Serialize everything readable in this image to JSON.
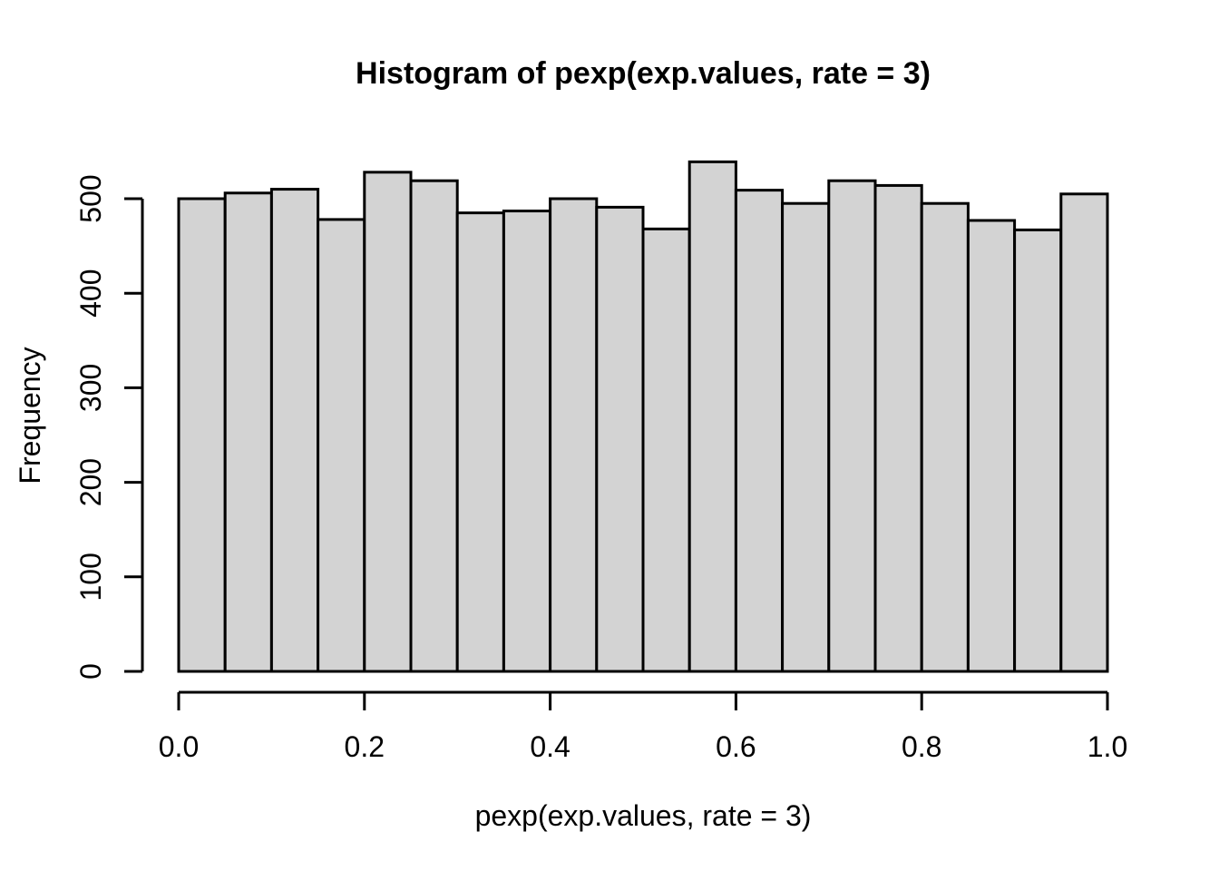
{
  "figure": {
    "background_color": "#ffffff",
    "text_color": "#000000"
  },
  "chart_data": {
    "type": "bar",
    "subtype": "histogram",
    "title": "Histogram of pexp(exp.values, rate = 3)",
    "xlabel": "pexp(exp.values, rate = 3)",
    "ylabel": "Frequency",
    "breaks": [
      0.0,
      0.05,
      0.1,
      0.15,
      0.2,
      0.25,
      0.3,
      0.35,
      0.4,
      0.45,
      0.5,
      0.55,
      0.6,
      0.65,
      0.7,
      0.75,
      0.8,
      0.85,
      0.9,
      0.95,
      1.0
    ],
    "values": [
      500,
      506,
      510,
      478,
      528,
      519,
      485,
      487,
      500,
      491,
      468,
      539,
      509,
      495,
      519,
      514,
      495,
      477,
      467,
      505
    ],
    "xlim": [
      0.0,
      1.0
    ],
    "ylim": [
      0,
      500
    ],
    "x_tick_values": [
      0.0,
      0.2,
      0.4,
      0.6,
      0.8,
      1.0
    ],
    "x_tick_labels": [
      "0.0",
      "0.2",
      "0.4",
      "0.6",
      "0.8",
      "1.0"
    ],
    "y_tick_values": [
      0,
      100,
      200,
      300,
      400,
      500
    ],
    "y_tick_labels": [
      "0",
      "100",
      "200",
      "300",
      "400",
      "500"
    ],
    "grid": false,
    "legend": false,
    "bar_fill_color": "#d3d3d3",
    "bar_border_color": "#000000",
    "axis_color": "#000000"
  }
}
